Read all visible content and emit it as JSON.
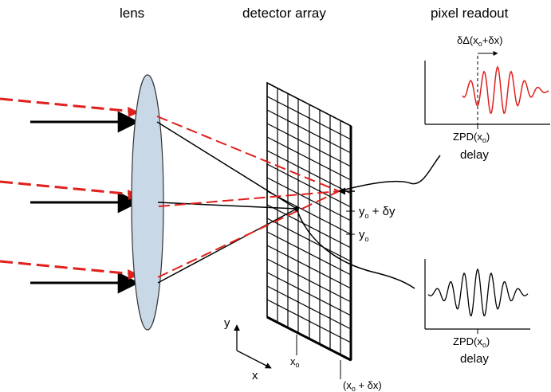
{
  "headings": {
    "lens": "lens",
    "detector": "detector array",
    "readout": "pixel readout"
  },
  "labels": {
    "delta_delay": "δΔ(x",
    "delta_delay_sub": "o",
    "delta_delay_tail": "+δx)",
    "zpd_top": "ZPD(x",
    "zpd_top_sub": "o",
    "zpd_top_tail": ")",
    "delay_top": "delay",
    "zpd_bottom": "ZPD(x",
    "zpd_bottom_sub": "o",
    "zpd_bottom_tail": ")",
    "delay_bottom": "delay",
    "y0_dy": "y",
    "y0_dy_sub": "o",
    "y0_dy_tail": " + δy",
    "y0": "y",
    "y0_sub": "o",
    "x0": "x",
    "x0_sub": "o",
    "x0_dx": "(x",
    "x0_dx_sub": "o",
    "x0_dx_tail": " + δx)",
    "axis_y": "y",
    "axis_x": "x"
  },
  "colors": {
    "ray_red": "#e0201c",
    "lens_fill": "#c9d8e6",
    "ink": "#000000"
  }
}
